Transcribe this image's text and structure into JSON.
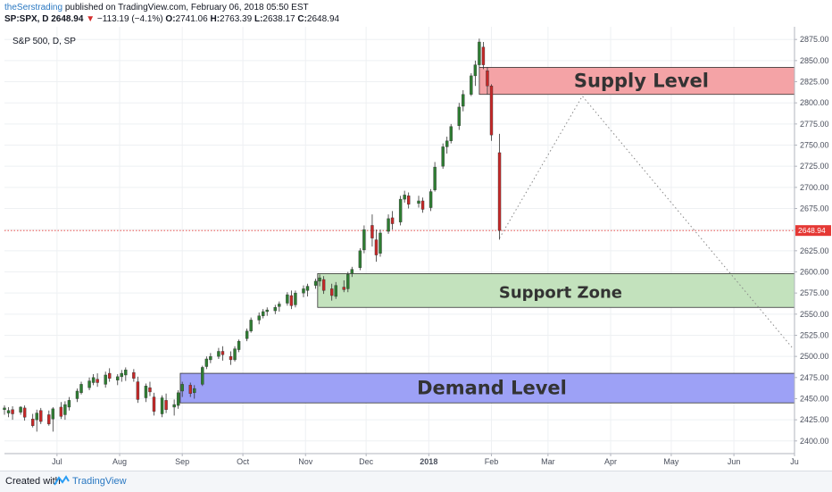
{
  "header": {
    "author": "theSerstrading",
    "published": "published on TradingView.com, February 06, 2018 05:50 EST",
    "symbol": "SP:SPX, D",
    "last": "2648.94",
    "change": "−113.19 (−4.1%)",
    "o_label": "O:",
    "o_value": "2741.06",
    "h_label": "H:",
    "h_value": "2763.39",
    "l_label": "L:",
    "l_value": "2638.17",
    "c_label": "C:",
    "c_value": "2648.94"
  },
  "symbol_label": "S&P 500, D, SP",
  "footer": {
    "created_with": "Created with",
    "brand": "TradingView"
  },
  "chart_data": {
    "type": "candlestick",
    "title": "",
    "xlabel": "",
    "ylabel": "",
    "ylim": [
      2385,
      2890
    ],
    "ytick_labels": [
      "2400.00",
      "2425.00",
      "2450.00",
      "2475.00",
      "2500.00",
      "2525.00",
      "2550.00",
      "2575.00",
      "2600.00",
      "2625.00",
      "2650.00",
      "2675.00",
      "2700.00",
      "2725.00",
      "2750.00",
      "2775.00",
      "2800.00",
      "2825.00",
      "2850.00",
      "2875.00"
    ],
    "x_ticks": [
      {
        "label": "Jul",
        "date": "2017-07-01"
      },
      {
        "label": "Aug",
        "date": "2017-08-01"
      },
      {
        "label": "Sep",
        "date": "2017-09-01"
      },
      {
        "label": "Oct",
        "date": "2017-10-01"
      },
      {
        "label": "Nov",
        "date": "2017-11-01"
      },
      {
        "label": "Dec",
        "date": "2017-12-01"
      },
      {
        "label": "2018",
        "date": "2018-01-01"
      },
      {
        "label": "Feb",
        "date": "2018-02-01"
      },
      {
        "label": "Mar",
        "date": "2018-03-01"
      },
      {
        "label": "Apr",
        "date": "2018-04-01"
      },
      {
        "label": "May",
        "date": "2018-05-01"
      },
      {
        "label": "Jun",
        "date": "2018-06-01"
      },
      {
        "label": "Ju",
        "date": "2018-07-01"
      }
    ],
    "x_range": [
      "2017-06-05",
      "2018-07-01"
    ],
    "last_price": {
      "label": "2648.94",
      "value": 2648.94
    },
    "zones": [
      {
        "name": "Supply Level",
        "from_date": "2018-01-26",
        "to_date": "2018-07-01",
        "y_low": 2810,
        "y_high": 2842,
        "fill": "#f4a3a6",
        "stroke": "#333333"
      },
      {
        "name": "Support Zone",
        "from_date": "2017-11-07",
        "to_date": "2018-07-01",
        "y_low": 2558,
        "y_high": 2598,
        "fill": "#c3e2bd",
        "stroke": "#333333"
      },
      {
        "name": "Demand Level",
        "from_date": "2017-08-31",
        "to_date": "2018-07-01",
        "y_low": 2445,
        "y_high": 2480,
        "fill": "#9da1f6",
        "stroke": "#333333"
      }
    ],
    "projection": [
      {
        "date": "2018-02-05",
        "value": 2640
      },
      {
        "date": "2018-03-18",
        "value": 2808
      },
      {
        "date": "2018-06-30",
        "value": 2510
      }
    ],
    "candles": [
      {
        "date": "2017-06-05",
        "open": 2437,
        "high": 2442,
        "low": 2431,
        "close": 2439
      },
      {
        "date": "2017-06-07",
        "open": 2433,
        "high": 2440,
        "low": 2428,
        "close": 2436
      },
      {
        "date": "2017-06-09",
        "open": 2437,
        "high": 2441,
        "low": 2425,
        "close": 2432
      },
      {
        "date": "2017-06-13",
        "open": 2434,
        "high": 2441,
        "low": 2431,
        "close": 2440
      },
      {
        "date": "2017-06-15",
        "open": 2439,
        "high": 2442,
        "low": 2424,
        "close": 2428
      },
      {
        "date": "2017-06-19",
        "open": 2426,
        "high": 2432,
        "low": 2416,
        "close": 2418
      },
      {
        "date": "2017-06-21",
        "open": 2425,
        "high": 2437,
        "low": 2411,
        "close": 2433
      },
      {
        "date": "2017-06-23",
        "open": 2436,
        "high": 2439,
        "low": 2420,
        "close": 2423
      },
      {
        "date": "2017-06-27",
        "open": 2431,
        "high": 2436,
        "low": 2418,
        "close": 2420
      },
      {
        "date": "2017-06-29",
        "open": 2426,
        "high": 2440,
        "low": 2411,
        "close": 2438
      },
      {
        "date": "2017-07-03",
        "open": 2440,
        "high": 2446,
        "low": 2426,
        "close": 2429
      },
      {
        "date": "2017-07-05",
        "open": 2431,
        "high": 2447,
        "low": 2425,
        "close": 2443
      },
      {
        "date": "2017-07-07",
        "open": 2440,
        "high": 2452,
        "low": 2436,
        "close": 2448
      },
      {
        "date": "2017-07-11",
        "open": 2450,
        "high": 2462,
        "low": 2446,
        "close": 2459
      },
      {
        "date": "2017-07-13",
        "open": 2457,
        "high": 2470,
        "low": 2455,
        "close": 2467
      },
      {
        "date": "2017-07-17",
        "open": 2463,
        "high": 2475,
        "low": 2460,
        "close": 2471
      },
      {
        "date": "2017-07-19",
        "open": 2469,
        "high": 2479,
        "low": 2466,
        "close": 2475
      },
      {
        "date": "2017-07-21",
        "open": 2473,
        "high": 2480,
        "low": 2464,
        "close": 2469
      },
      {
        "date": "2017-07-25",
        "open": 2467,
        "high": 2482,
        "low": 2463,
        "close": 2478
      },
      {
        "date": "2017-07-27",
        "open": 2480,
        "high": 2486,
        "low": 2470,
        "close": 2474
      },
      {
        "date": "2017-07-31",
        "open": 2472,
        "high": 2479,
        "low": 2466,
        "close": 2476
      },
      {
        "date": "2017-08-02",
        "open": 2476,
        "high": 2484,
        "low": 2470,
        "close": 2480
      },
      {
        "date": "2017-08-04",
        "open": 2478,
        "high": 2487,
        "low": 2471,
        "close": 2484
      },
      {
        "date": "2017-08-08",
        "open": 2481,
        "high": 2485,
        "low": 2470,
        "close": 2474
      },
      {
        "date": "2017-08-10",
        "open": 2470,
        "high": 2476,
        "low": 2445,
        "close": 2449
      },
      {
        "date": "2017-08-14",
        "open": 2451,
        "high": 2468,
        "low": 2446,
        "close": 2465
      },
      {
        "date": "2017-08-16",
        "open": 2463,
        "high": 2470,
        "low": 2453,
        "close": 2458
      },
      {
        "date": "2017-08-18",
        "open": 2452,
        "high": 2457,
        "low": 2430,
        "close": 2435
      },
      {
        "date": "2017-08-22",
        "open": 2432,
        "high": 2454,
        "low": 2428,
        "close": 2451
      },
      {
        "date": "2017-08-24",
        "open": 2448,
        "high": 2456,
        "low": 2433,
        "close": 2437
      },
      {
        "date": "2017-08-28",
        "open": 2440,
        "high": 2449,
        "low": 2430,
        "close": 2443
      },
      {
        "date": "2017-08-30",
        "open": 2442,
        "high": 2460,
        "low": 2438,
        "close": 2457
      },
      {
        "date": "2017-09-01",
        "open": 2459,
        "high": 2470,
        "low": 2452,
        "close": 2467
      },
      {
        "date": "2017-09-05",
        "open": 2466,
        "high": 2469,
        "low": 2452,
        "close": 2456
      },
      {
        "date": "2017-09-07",
        "open": 2457,
        "high": 2466,
        "low": 2450,
        "close": 2462
      },
      {
        "date": "2017-09-11",
        "open": 2467,
        "high": 2489,
        "low": 2465,
        "close": 2487
      },
      {
        "date": "2017-09-13",
        "open": 2488,
        "high": 2500,
        "low": 2485,
        "close": 2497
      },
      {
        "date": "2017-09-15",
        "open": 2496,
        "high": 2504,
        "low": 2492,
        "close": 2500
      },
      {
        "date": "2017-09-19",
        "open": 2500,
        "high": 2510,
        "low": 2497,
        "close": 2506
      },
      {
        "date": "2017-09-21",
        "open": 2506,
        "high": 2512,
        "low": 2495,
        "close": 2502
      },
      {
        "date": "2017-09-25",
        "open": 2500,
        "high": 2506,
        "low": 2490,
        "close": 2496
      },
      {
        "date": "2017-09-27",
        "open": 2496,
        "high": 2512,
        "low": 2494,
        "close": 2509
      },
      {
        "date": "2017-09-29",
        "open": 2508,
        "high": 2520,
        "low": 2505,
        "close": 2518
      },
      {
        "date": "2017-10-03",
        "open": 2521,
        "high": 2533,
        "low": 2518,
        "close": 2530
      },
      {
        "date": "2017-10-05",
        "open": 2530,
        "high": 2546,
        "low": 2528,
        "close": 2543
      },
      {
        "date": "2017-10-09",
        "open": 2543,
        "high": 2552,
        "low": 2538,
        "close": 2548
      },
      {
        "date": "2017-10-11",
        "open": 2548,
        "high": 2556,
        "low": 2545,
        "close": 2553
      },
      {
        "date": "2017-10-13",
        "open": 2553,
        "high": 2558,
        "low": 2548,
        "close": 2555
      },
      {
        "date": "2017-10-17",
        "open": 2554,
        "high": 2561,
        "low": 2550,
        "close": 2558
      },
      {
        "date": "2017-10-19",
        "open": 2559,
        "high": 2565,
        "low": 2553,
        "close": 2562
      },
      {
        "date": "2017-10-23",
        "open": 2563,
        "high": 2576,
        "low": 2560,
        "close": 2573
      },
      {
        "date": "2017-10-25",
        "open": 2572,
        "high": 2578,
        "low": 2556,
        "close": 2560
      },
      {
        "date": "2017-10-27",
        "open": 2561,
        "high": 2578,
        "low": 2558,
        "close": 2575
      },
      {
        "date": "2017-10-31",
        "open": 2575,
        "high": 2584,
        "low": 2570,
        "close": 2580
      },
      {
        "date": "2017-11-02",
        "open": 2578,
        "high": 2586,
        "low": 2571,
        "close": 2583
      },
      {
        "date": "2017-11-06",
        "open": 2584,
        "high": 2592,
        "low": 2580,
        "close": 2589
      },
      {
        "date": "2017-11-08",
        "open": 2589,
        "high": 2597,
        "low": 2583,
        "close": 2593
      },
      {
        "date": "2017-11-10",
        "open": 2591,
        "high": 2595,
        "low": 2574,
        "close": 2578
      },
      {
        "date": "2017-11-14",
        "open": 2580,
        "high": 2586,
        "low": 2566,
        "close": 2572
      },
      {
        "date": "2017-11-16",
        "open": 2571,
        "high": 2588,
        "low": 2568,
        "close": 2584
      },
      {
        "date": "2017-11-20",
        "open": 2582,
        "high": 2590,
        "low": 2576,
        "close": 2579
      },
      {
        "date": "2017-11-22",
        "open": 2580,
        "high": 2600,
        "low": 2576,
        "close": 2597
      },
      {
        "date": "2017-11-24",
        "open": 2598,
        "high": 2606,
        "low": 2594,
        "close": 2603
      },
      {
        "date": "2017-11-28",
        "open": 2605,
        "high": 2628,
        "low": 2602,
        "close": 2625
      },
      {
        "date": "2017-11-30",
        "open": 2626,
        "high": 2655,
        "low": 2622,
        "close": 2650
      },
      {
        "date": "2017-12-04",
        "open": 2655,
        "high": 2668,
        "low": 2630,
        "close": 2640
      },
      {
        "date": "2017-12-06",
        "open": 2638,
        "high": 2650,
        "low": 2612,
        "close": 2620
      },
      {
        "date": "2017-12-08",
        "open": 2622,
        "high": 2650,
        "low": 2618,
        "close": 2646
      },
      {
        "date": "2017-12-12",
        "open": 2648,
        "high": 2668,
        "low": 2645,
        "close": 2663
      },
      {
        "date": "2017-12-14",
        "open": 2664,
        "high": 2672,
        "low": 2650,
        "close": 2657
      },
      {
        "date": "2017-12-18",
        "open": 2659,
        "high": 2690,
        "low": 2655,
        "close": 2686
      },
      {
        "date": "2017-12-20",
        "open": 2686,
        "high": 2696,
        "low": 2682,
        "close": 2691
      },
      {
        "date": "2017-12-22",
        "open": 2690,
        "high": 2694,
        "low": 2675,
        "close": 2680
      },
      {
        "date": "2017-12-27",
        "open": 2681,
        "high": 2690,
        "low": 2676,
        "close": 2684
      },
      {
        "date": "2017-12-29",
        "open": 2684,
        "high": 2688,
        "low": 2670,
        "close": 2674
      },
      {
        "date": "2018-01-02",
        "open": 2676,
        "high": 2698,
        "low": 2672,
        "close": 2695
      },
      {
        "date": "2018-01-04",
        "open": 2697,
        "high": 2730,
        "low": 2695,
        "close": 2724
      },
      {
        "date": "2018-01-08",
        "open": 2725,
        "high": 2752,
        "low": 2722,
        "close": 2748
      },
      {
        "date": "2018-01-10",
        "open": 2748,
        "high": 2760,
        "low": 2740,
        "close": 2755
      },
      {
        "date": "2018-01-12",
        "open": 2755,
        "high": 2775,
        "low": 2752,
        "close": 2772
      },
      {
        "date": "2018-01-16",
        "open": 2773,
        "high": 2800,
        "low": 2768,
        "close": 2795
      },
      {
        "date": "2018-01-18",
        "open": 2796,
        "high": 2815,
        "low": 2790,
        "close": 2810
      },
      {
        "date": "2018-01-22",
        "open": 2810,
        "high": 2835,
        "low": 2808,
        "close": 2832
      },
      {
        "date": "2018-01-24",
        "open": 2832,
        "high": 2850,
        "low": 2820,
        "close": 2845
      },
      {
        "date": "2018-01-26",
        "open": 2845,
        "high": 2876,
        "low": 2842,
        "close": 2872
      },
      {
        "date": "2018-01-28",
        "open": 2866,
        "high": 2872,
        "low": 2840,
        "close": 2845
      },
      {
        "date": "2018-01-30",
        "open": 2838,
        "high": 2842,
        "low": 2810,
        "close": 2820
      },
      {
        "date": "2018-02-01",
        "open": 2820,
        "high": 2822,
        "low": 2755,
        "close": 2762
      },
      {
        "date": "2018-02-05",
        "open": 2741.06,
        "high": 2763.39,
        "low": 2638.17,
        "close": 2648.94
      }
    ]
  }
}
